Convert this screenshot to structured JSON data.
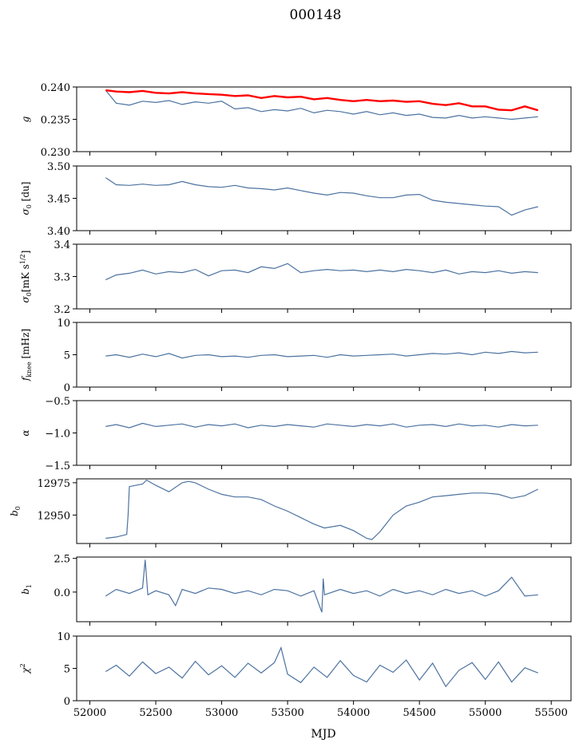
{
  "figure": {
    "title": "000148",
    "xlabel": "MJD",
    "xlim": [
      51900,
      55650
    ],
    "xticks": [
      52000,
      52500,
      53000,
      53500,
      54000,
      54500,
      55000,
      55500
    ],
    "xtick_labels": [
      "52000",
      "52500",
      "53000",
      "53500",
      "54000",
      "54500",
      "55000",
      "55500"
    ]
  },
  "colors": {
    "series": "#4c72a0",
    "highlight": "#ff0000",
    "axes": "#000000"
  },
  "chart_data": [
    {
      "type": "line",
      "ylabel": "g",
      "ylim": [
        0.23,
        0.24
      ],
      "yticks": [
        0.23,
        0.235,
        0.24
      ],
      "ytick_labels": [
        "0.230",
        "0.235",
        "0.240"
      ],
      "series": [
        {
          "color": "#4c72a0",
          "x": [
            52120,
            52200,
            52300,
            52400,
            52500,
            52600,
            52700,
            52800,
            52900,
            53000,
            53100,
            53200,
            53300,
            53400,
            53500,
            53600,
            53700,
            53800,
            53900,
            54000,
            54100,
            54200,
            54300,
            54400,
            54500,
            54600,
            54700,
            54800,
            54900,
            55000,
            55100,
            55200,
            55300,
            55400
          ],
          "y": [
            0.2395,
            0.2375,
            0.2372,
            0.2378,
            0.2376,
            0.2379,
            0.2373,
            0.2377,
            0.2375,
            0.2378,
            0.2366,
            0.2368,
            0.2362,
            0.2365,
            0.2363,
            0.2367,
            0.236,
            0.2364,
            0.2362,
            0.2358,
            0.2362,
            0.2357,
            0.236,
            0.2356,
            0.2358,
            0.2353,
            0.2352,
            0.2356,
            0.2352,
            0.2354,
            0.2352,
            0.235,
            0.2352,
            0.2354
          ]
        },
        {
          "color": "#ff0000",
          "x": [
            52120,
            52200,
            52300,
            52400,
            52500,
            52600,
            52700,
            52800,
            52900,
            53000,
            53100,
            53200,
            53300,
            53400,
            53500,
            53600,
            53700,
            53800,
            53900,
            54000,
            54100,
            54200,
            54300,
            54400,
            54500,
            54600,
            54700,
            54800,
            54900,
            55000,
            55100,
            55200,
            55300,
            55400
          ],
          "y": [
            0.2395,
            0.2393,
            0.2392,
            0.2394,
            0.2391,
            0.239,
            0.2392,
            0.239,
            0.2389,
            0.2388,
            0.2386,
            0.2387,
            0.2383,
            0.2386,
            0.2384,
            0.2385,
            0.2381,
            0.2383,
            0.238,
            0.2378,
            0.238,
            0.2378,
            0.2379,
            0.2377,
            0.2378,
            0.2374,
            0.2372,
            0.2375,
            0.237,
            0.237,
            0.2365,
            0.2364,
            0.237,
            0.2364
          ]
        }
      ]
    },
    {
      "type": "line",
      "ylabel": "σ0 [du]",
      "ylim": [
        3.4,
        3.5
      ],
      "yticks": [
        3.4,
        3.45,
        3.5
      ],
      "ytick_labels": [
        "3.40",
        "3.45",
        "3.50"
      ],
      "series": [
        {
          "color": "#4c72a0",
          "x": [
            52120,
            52200,
            52300,
            52400,
            52500,
            52600,
            52700,
            52800,
            52900,
            53000,
            53100,
            53200,
            53300,
            53400,
            53500,
            53600,
            53700,
            53800,
            53900,
            54000,
            54100,
            54200,
            54300,
            54400,
            54500,
            54600,
            54700,
            54800,
            54900,
            55000,
            55100,
            55200,
            55300,
            55400
          ],
          "y": [
            3.482,
            3.471,
            3.47,
            3.472,
            3.47,
            3.471,
            3.476,
            3.471,
            3.468,
            3.467,
            3.47,
            3.466,
            3.465,
            3.463,
            3.466,
            3.462,
            3.458,
            3.455,
            3.459,
            3.458,
            3.454,
            3.451,
            3.451,
            3.455,
            3.456,
            3.447,
            3.444,
            3.442,
            3.44,
            3.438,
            3.437,
            3.424,
            3.432,
            3.437
          ]
        }
      ]
    },
    {
      "type": "line",
      "ylabel": "σ0 [mK s1/2]",
      "ylim": [
        3.2,
        3.4
      ],
      "yticks": [
        3.2,
        3.3,
        3.4
      ],
      "ytick_labels": [
        "3.2",
        "3.3",
        "3.4"
      ],
      "series": [
        {
          "color": "#4c72a0",
          "x": [
            52120,
            52200,
            52300,
            52400,
            52500,
            52600,
            52700,
            52800,
            52900,
            53000,
            53100,
            53200,
            53300,
            53400,
            53500,
            53600,
            53700,
            53800,
            53900,
            54000,
            54100,
            54200,
            54300,
            54400,
            54500,
            54600,
            54700,
            54800,
            54900,
            55000,
            55100,
            55200,
            55300,
            55400
          ],
          "y": [
            3.29,
            3.305,
            3.31,
            3.32,
            3.308,
            3.315,
            3.312,
            3.322,
            3.302,
            3.318,
            3.32,
            3.312,
            3.33,
            3.325,
            3.34,
            3.312,
            3.318,
            3.322,
            3.318,
            3.32,
            3.315,
            3.32,
            3.315,
            3.322,
            3.318,
            3.312,
            3.32,
            3.308,
            3.315,
            3.312,
            3.318,
            3.31,
            3.315,
            3.312
          ]
        }
      ]
    },
    {
      "type": "line",
      "ylabel": "fknee [mHz]",
      "ylim": [
        0,
        10
      ],
      "yticks": [
        0,
        5,
        10
      ],
      "ytick_labels": [
        "0",
        "5",
        "10"
      ],
      "series": [
        {
          "color": "#4c72a0",
          "x": [
            52120,
            52200,
            52300,
            52400,
            52500,
            52600,
            52700,
            52800,
            52900,
            53000,
            53100,
            53200,
            53300,
            53400,
            53500,
            53600,
            53700,
            53800,
            53900,
            54000,
            54100,
            54200,
            54300,
            54400,
            54500,
            54600,
            54700,
            54800,
            54900,
            55000,
            55100,
            55200,
            55300,
            55400
          ],
          "y": [
            4.8,
            5.0,
            4.6,
            5.1,
            4.7,
            5.2,
            4.5,
            4.9,
            5.0,
            4.7,
            4.8,
            4.6,
            4.9,
            5.0,
            4.7,
            4.8,
            4.9,
            4.6,
            5.0,
            4.8,
            4.9,
            5.0,
            5.1,
            4.8,
            5.0,
            5.2,
            5.1,
            5.3,
            5.0,
            5.4,
            5.2,
            5.5,
            5.3,
            5.4
          ]
        }
      ]
    },
    {
      "type": "line",
      "ylabel": "α",
      "ylim": [
        -1.5,
        -0.5
      ],
      "yticks": [
        -1.5,
        -1.0,
        -0.5
      ],
      "ytick_labels": [
        "−1.5",
        "−1.0",
        "−0.5"
      ],
      "series": [
        {
          "color": "#4c72a0",
          "x": [
            52120,
            52200,
            52300,
            52400,
            52500,
            52600,
            52700,
            52800,
            52900,
            53000,
            53100,
            53200,
            53300,
            53400,
            53500,
            53600,
            53700,
            53800,
            53900,
            54000,
            54100,
            54200,
            54300,
            54400,
            54500,
            54600,
            54700,
            54800,
            54900,
            55000,
            55100,
            55200,
            55300,
            55400
          ],
          "y": [
            -0.9,
            -0.87,
            -0.92,
            -0.85,
            -0.9,
            -0.88,
            -0.86,
            -0.91,
            -0.87,
            -0.89,
            -0.86,
            -0.92,
            -0.88,
            -0.9,
            -0.87,
            -0.89,
            -0.91,
            -0.86,
            -0.88,
            -0.9,
            -0.87,
            -0.89,
            -0.86,
            -0.91,
            -0.88,
            -0.87,
            -0.9,
            -0.86,
            -0.89,
            -0.88,
            -0.91,
            -0.87,
            -0.89,
            -0.88
          ]
        }
      ]
    },
    {
      "type": "line",
      "ylabel": "b0",
      "ylim": [
        12928,
        12978
      ],
      "yticks": [
        12950,
        12975
      ],
      "ytick_labels": [
        "12950",
        "12975"
      ],
      "series": [
        {
          "color": "#4c72a0",
          "x": [
            52120,
            52200,
            52280,
            52290,
            52300,
            52400,
            52430,
            52500,
            52600,
            52700,
            52750,
            52800,
            52900,
            53000,
            53100,
            53200,
            53300,
            53400,
            53500,
            53600,
            53700,
            53780,
            53900,
            54000,
            54100,
            54140,
            54200,
            54300,
            54400,
            54500,
            54600,
            54700,
            54800,
            54900,
            55000,
            55100,
            55200,
            55300,
            55400
          ],
          "y": [
            12932,
            12933,
            12935,
            12950,
            12972,
            12974,
            12977,
            12973,
            12968,
            12975,
            12976,
            12975,
            12970,
            12966,
            12964,
            12964,
            12962,
            12957,
            12953,
            12948,
            12943,
            12940,
            12942,
            12938,
            12932,
            12931,
            12937,
            12950,
            12957,
            12960,
            12964,
            12965,
            12966,
            12967,
            12967,
            12966,
            12963,
            12965,
            12970
          ]
        }
      ]
    },
    {
      "type": "line",
      "ylabel": "b1",
      "ylim": [
        -2.2,
        2.6
      ],
      "yticks": [
        0.0,
        2.5
      ],
      "ytick_labels": [
        "0.0",
        "2.5"
      ],
      "series": [
        {
          "color": "#4c72a0",
          "x": [
            52120,
            52200,
            52300,
            52400,
            52420,
            52440,
            52500,
            52600,
            52650,
            52700,
            52800,
            52900,
            53000,
            53100,
            53200,
            53300,
            53400,
            53500,
            53600,
            53700,
            53760,
            53770,
            53780,
            53900,
            54000,
            54100,
            54200,
            54300,
            54400,
            54500,
            54600,
            54700,
            54800,
            54900,
            55000,
            55100,
            55200,
            55300,
            55400
          ],
          "y": [
            -0.3,
            0.2,
            -0.1,
            0.3,
            2.4,
            -0.2,
            0.1,
            -0.2,
            -1.0,
            0.2,
            -0.1,
            0.3,
            0.2,
            -0.1,
            0.1,
            -0.2,
            0.2,
            0.1,
            -0.3,
            0.1,
            -1.5,
            1.0,
            -0.2,
            0.2,
            -0.1,
            0.1,
            -0.3,
            0.2,
            -0.1,
            0.1,
            -0.2,
            0.2,
            -0.1,
            0.1,
            -0.3,
            0.1,
            1.1,
            -0.3,
            -0.2
          ]
        }
      ]
    },
    {
      "type": "line",
      "ylabel": "χ2",
      "ylim": [
        0,
        10
      ],
      "yticks": [
        0,
        5,
        10
      ],
      "ytick_labels": [
        "0",
        "5",
        "10"
      ],
      "series": [
        {
          "color": "#4c72a0",
          "x": [
            52120,
            52200,
            52300,
            52400,
            52500,
            52600,
            52700,
            52800,
            52900,
            53000,
            53100,
            53200,
            53300,
            53400,
            53450,
            53500,
            53600,
            53700,
            53800,
            53900,
            54000,
            54100,
            54200,
            54300,
            54400,
            54500,
            54600,
            54700,
            54800,
            54900,
            55000,
            55100,
            55200,
            55300,
            55400
          ],
          "y": [
            4.5,
            5.5,
            3.8,
            6.0,
            4.2,
            5.2,
            3.5,
            6.1,
            4.0,
            5.4,
            3.6,
            5.8,
            4.3,
            5.9,
            8.2,
            4.1,
            2.8,
            5.2,
            3.6,
            6.2,
            3.9,
            2.9,
            5.5,
            4.4,
            6.3,
            3.2,
            5.8,
            2.2,
            4.7,
            5.9,
            3.3,
            6.0,
            2.9,
            5.1,
            4.3
          ]
        }
      ]
    }
  ]
}
